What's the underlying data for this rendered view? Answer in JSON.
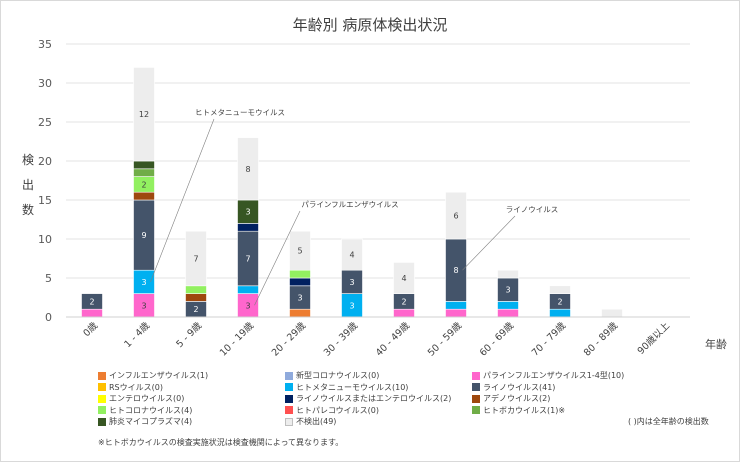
{
  "chart_data": {
    "type": "bar",
    "stacked": true,
    "title": "年齢別 病原体検出状況",
    "xlabel": "年齢",
    "ylabel": "検出数",
    "ylim": [
      0,
      35
    ],
    "yticks": [
      0,
      5,
      10,
      15,
      20,
      25,
      30,
      35
    ],
    "grid": true,
    "legend_position": "bottom",
    "categories": [
      "0歳",
      "1 - 4歳",
      "5 - 9歳",
      "10 - 19歳",
      "20 - 29歳",
      "30 - 39歳",
      "40 - 49歳",
      "50 - 59歳",
      "60 - 69歳",
      "70 - 79歳",
      "80 - 89歳",
      "90歳以上"
    ],
    "series": [
      {
        "name": "インフルエンザウイルス(1)",
        "color": "#ed7d31",
        "values": [
          0,
          0,
          0,
          0,
          1,
          0,
          0,
          0,
          0,
          0,
          0,
          0
        ]
      },
      {
        "name": "新型コロナウイルス(0)",
        "color": "#8faadc",
        "values": [
          0,
          0,
          0,
          0,
          0,
          0,
          0,
          0,
          0,
          0,
          0,
          0
        ]
      },
      {
        "name": "パラインフルエンザウイルス1-4型(10)",
        "color": "#ff66cc",
        "values": [
          1,
          3,
          0,
          3,
          0,
          0,
          1,
          1,
          1,
          0,
          0,
          0
        ]
      },
      {
        "name": "RSウイルス(0)",
        "color": "#ffc000",
        "values": [
          0,
          0,
          0,
          0,
          0,
          0,
          0,
          0,
          0,
          0,
          0,
          0
        ]
      },
      {
        "name": "ヒトメタニューモウイルス(10)",
        "color": "#00b0f0",
        "values": [
          0,
          3,
          0,
          1,
          0,
          3,
          0,
          1,
          1,
          1,
          0,
          0
        ]
      },
      {
        "name": "ライノウイルス(41)",
        "color": "#44546a",
        "values": [
          2,
          9,
          2,
          7,
          3,
          3,
          2,
          8,
          3,
          2,
          0,
          0
        ]
      },
      {
        "name": "エンテロウイルス(0)",
        "color": "#ffff00",
        "values": [
          0,
          0,
          0,
          0,
          0,
          0,
          0,
          0,
          0,
          0,
          0,
          0
        ]
      },
      {
        "name": "ライノウイルスまたはエンテロウイルス(2)",
        "color": "#002060",
        "values": [
          0,
          0,
          0,
          1,
          1,
          0,
          0,
          0,
          0,
          0,
          0,
          0
        ]
      },
      {
        "name": "アデノウイルス(2)",
        "color": "#9e480e",
        "values": [
          0,
          1,
          1,
          0,
          0,
          0,
          0,
          0,
          0,
          0,
          0,
          0
        ]
      },
      {
        "name": "ヒトコロナウイルス(4)",
        "color": "#92f060",
        "values": [
          0,
          2,
          1,
          0,
          1,
          0,
          0,
          0,
          0,
          0,
          0,
          0
        ]
      },
      {
        "name": "ヒトパレコウイルス(0)",
        "color": "#ff5050",
        "values": [
          0,
          0,
          0,
          0,
          0,
          0,
          0,
          0,
          0,
          0,
          0,
          0
        ]
      },
      {
        "name": "ヒトボカウイルス(1)※",
        "color": "#70ad47",
        "values": [
          0,
          1,
          0,
          0,
          0,
          0,
          0,
          0,
          0,
          0,
          0,
          0
        ]
      },
      {
        "name": "肺炎マイコプラズマ(4)",
        "color": "#375623",
        "values": [
          0,
          1,
          0,
          3,
          0,
          0,
          0,
          0,
          0,
          0,
          0,
          0
        ]
      },
      {
        "name": "不検出(49)",
        "color": "#ededed",
        "values": [
          0,
          12,
          7,
          8,
          5,
          4,
          4,
          6,
          1,
          1,
          1,
          0
        ]
      }
    ],
    "annotations": [
      {
        "text": "ヒトメタニューモウイルス",
        "category": "1 - 4歳"
      },
      {
        "text": "パラインフルエンザウイルス",
        "category": "10 - 19歳"
      },
      {
        "text": "ライノウイルス",
        "category": "50 - 59歳"
      }
    ]
  },
  "notes": {
    "right": "( )内は全年齢の検出数",
    "footnote": "※ヒトボカウイルスの検査実施状況は検査機関によって異なります。"
  }
}
